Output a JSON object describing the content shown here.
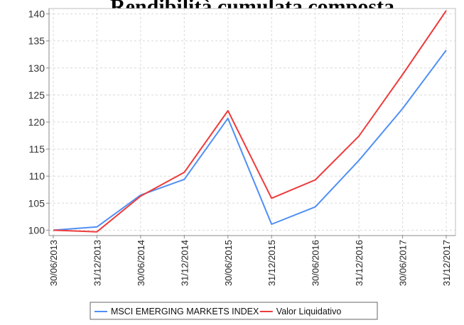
{
  "chart_data": {
    "type": "line",
    "title": "Rendibilità cumulata composta",
    "categories": [
      "30/06/2013",
      "31/12/2013",
      "30/06/2014",
      "31/12/2014",
      "30/06/2015",
      "31/12/2015",
      "30/06/2016",
      "31/12/2016",
      "30/06/2017",
      "31/12/2017"
    ],
    "series": [
      {
        "name": "MSCI EMERGING MARKETS INDEX",
        "color": "#4f8ff5",
        "values": [
          100.0,
          100.6,
          106.5,
          109.4,
          120.7,
          101.1,
          104.3,
          112.9,
          122.5,
          133.3
        ]
      },
      {
        "name": "Valor Liquidativo",
        "color": "#ee3b3b",
        "values": [
          100.0,
          99.7,
          106.3,
          110.7,
          122.1,
          105.9,
          109.3,
          117.4,
          128.8,
          140.6
        ]
      }
    ],
    "ylim": [
      99,
      141
    ],
    "yticks": [
      100,
      105,
      110,
      115,
      120,
      125,
      130,
      135,
      140
    ],
    "ytick_labels": [
      "100",
      "105",
      "110",
      "115",
      "120",
      "125",
      "130",
      "135",
      "140"
    ],
    "grid": true,
    "legend": "bottom"
  }
}
